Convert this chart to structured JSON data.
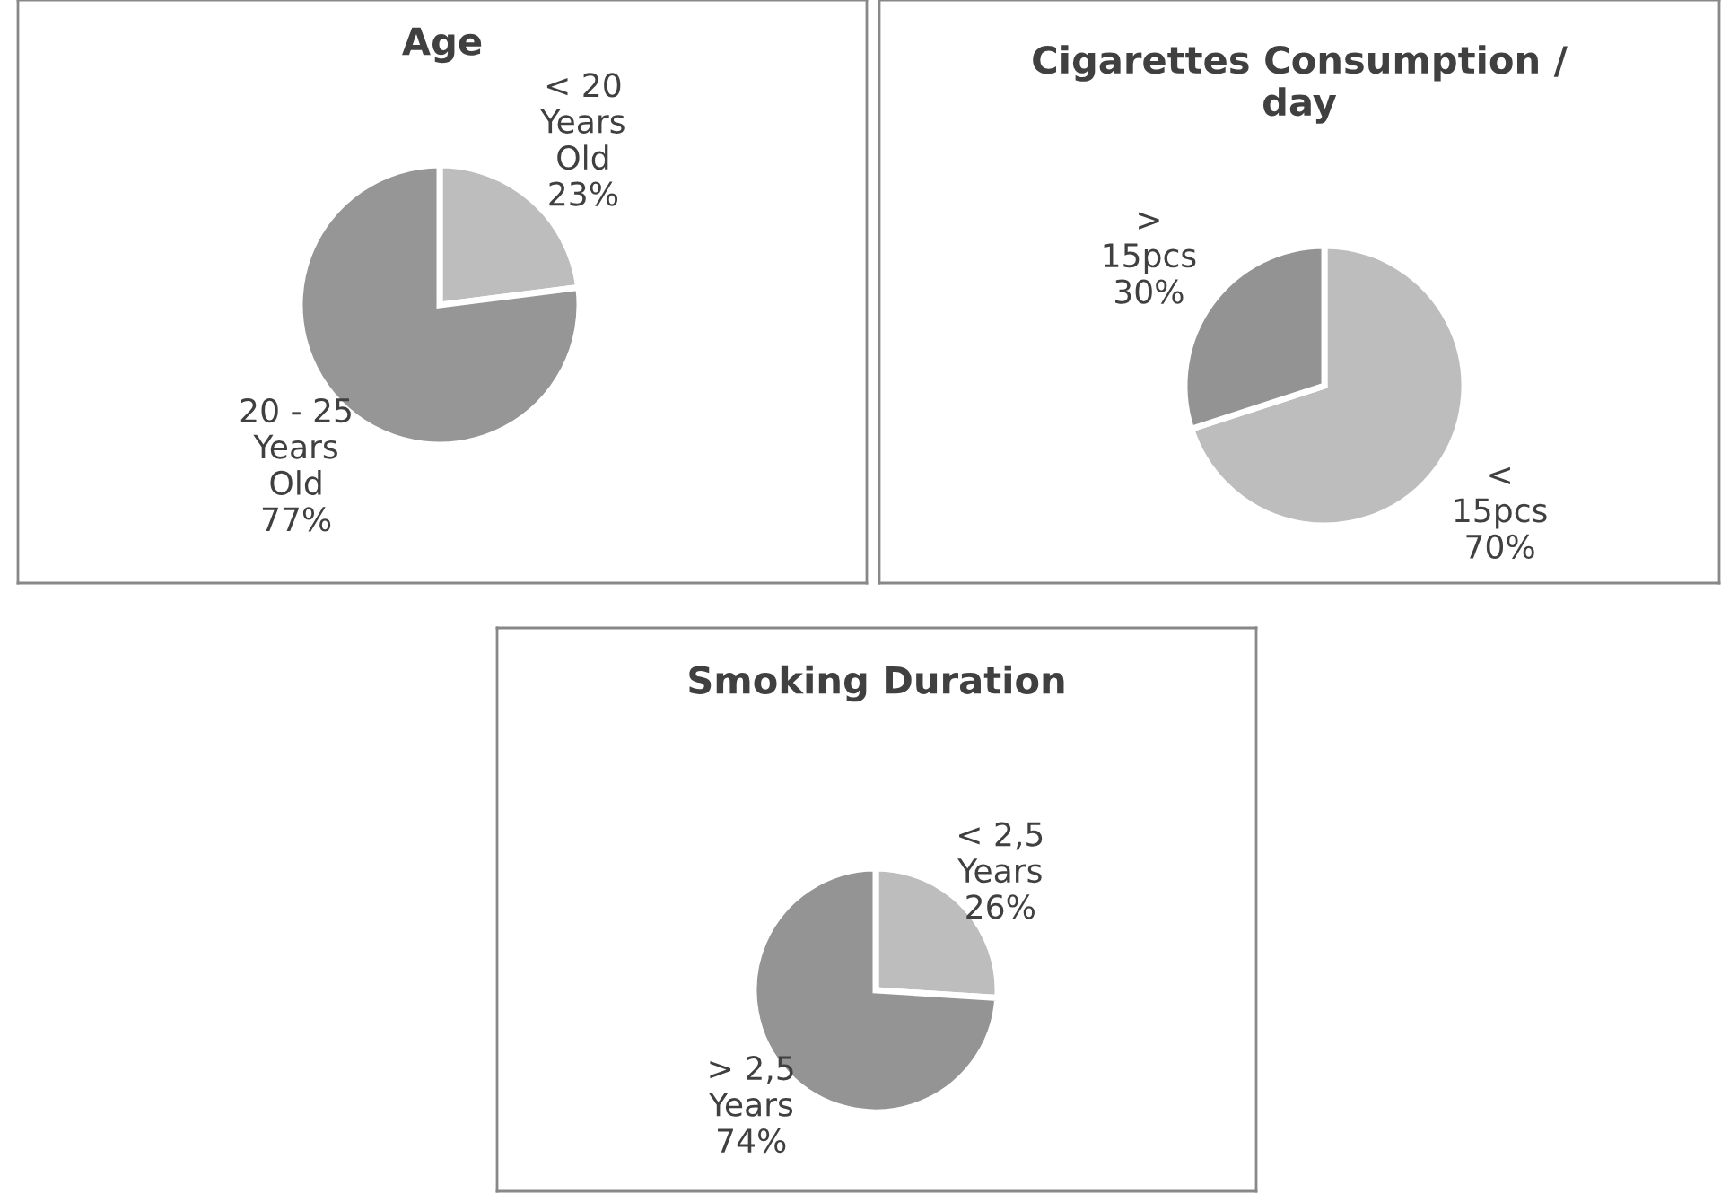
{
  "chart_data": [
    {
      "type": "pie",
      "title": "Age",
      "categories": [
        "< 20\nYears\nOld",
        "20 - 25\nYears\nOld"
      ],
      "values": [
        23,
        77
      ],
      "value_labels": [
        "23%",
        "77%"
      ],
      "colors": [
        "#bdbdbd",
        "#969696"
      ]
    },
    {
      "type": "pie",
      "title": "Cigarettes Consumption /\nday",
      "categories": [
        "<\n15pcs",
        ">\n15pcs"
      ],
      "values": [
        70,
        30
      ],
      "value_labels": [
        "70%",
        "30%"
      ],
      "colors": [
        "#bdbdbd",
        "#939393"
      ]
    },
    {
      "type": "pie",
      "title": "Smoking Duration",
      "categories": [
        "< 2,5\nYears",
        "> 2,5\nYears"
      ],
      "values": [
        26,
        74
      ],
      "value_labels": [
        "26%",
        "74%"
      ],
      "colors": [
        "#bdbdbd",
        "#949494"
      ]
    }
  ]
}
